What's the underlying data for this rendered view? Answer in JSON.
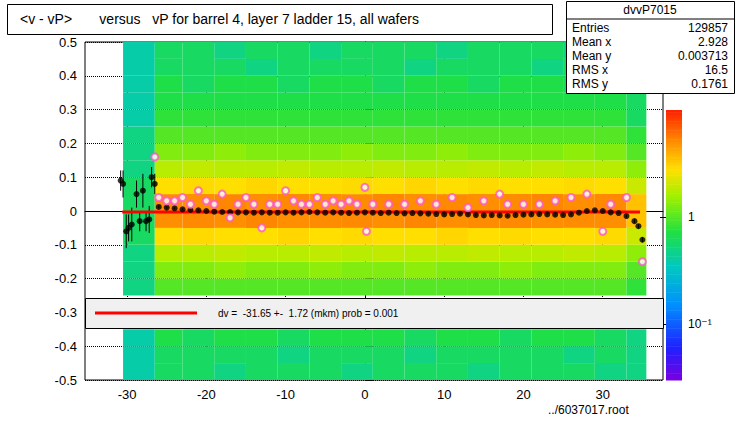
{
  "chart_data": {
    "type": "heatmap",
    "title": "<v - vP>       versus   vP for barrel 4, layer 7 ladder 15, all wafers",
    "xlim": [
      -35.3,
      37.6
    ],
    "xticks": [
      -30,
      -20,
      -10,
      0,
      10,
      20,
      30
    ],
    "ylim": [
      -0.5,
      0.5
    ],
    "yticks": [
      -0.5,
      -0.4,
      -0.3,
      -0.2,
      -0.1,
      0,
      0.1,
      0.2,
      0.3,
      0.4,
      0.5
    ],
    "grid": true,
    "heatmap": {
      "x_edges": [
        -30.5,
        -26.5,
        -23,
        -19,
        -15,
        -11,
        -7,
        -3,
        1,
        5,
        9,
        13,
        17,
        21,
        25,
        29,
        33,
        35.5
      ],
      "y_edges": [
        -0.5,
        -0.45,
        -0.4,
        -0.35,
        -0.3,
        -0.25,
        -0.2,
        -0.15,
        -0.1,
        -0.05,
        0,
        0.05,
        0.1,
        0.15,
        0.2,
        0.25,
        0.3,
        0.35,
        0.4,
        0.45,
        0.5
      ],
      "values": [
        [
          0.4,
          0.6,
          0.6,
          0.5,
          0.6,
          0.6,
          0.6,
          0.5,
          0.6,
          0.6,
          0.6,
          0.5,
          0.6,
          0.6,
          0.6,
          0.5,
          0.5
        ],
        [
          0.4,
          0.6,
          0.6,
          0.6,
          0.6,
          0.5,
          0.6,
          0.6,
          0.6,
          0.5,
          0.6,
          0.6,
          0.6,
          0.6,
          0.5,
          0.6,
          0.5
        ],
        [
          0.4,
          0.7,
          0.6,
          0.7,
          0.7,
          0.6,
          0.7,
          0.7,
          0.7,
          0.6,
          0.7,
          0.7,
          0.6,
          0.7,
          0.7,
          0.6,
          0.5
        ],
        [
          null,
          null,
          null,
          null,
          null,
          null,
          null,
          null,
          null,
          null,
          null,
          null,
          null,
          null,
          null,
          null,
          null
        ],
        [
          null,
          null,
          null,
          null,
          null,
          null,
          null,
          null,
          null,
          null,
          null,
          null,
          null,
          null,
          null,
          null,
          null
        ],
        [
          0.5,
          1,
          1,
          1,
          1,
          1,
          1,
          1,
          1,
          1,
          1,
          1,
          1,
          1,
          1,
          1,
          0.8
        ],
        [
          0.5,
          1.3,
          1.3,
          1.4,
          1.3,
          1.3,
          1.4,
          1.3,
          1.3,
          1.4,
          1.3,
          1.3,
          1.4,
          1.3,
          1.3,
          1.3,
          1
        ],
        [
          0.5,
          1.8,
          1.8,
          1.9,
          1.8,
          1.8,
          1.9,
          1.8,
          1.9,
          1.8,
          1.8,
          1.9,
          1.8,
          1.8,
          1.9,
          1.8,
          1.4
        ],
        [
          0.6,
          2.8,
          2.9,
          2.8,
          2.8,
          3,
          2.8,
          2.9,
          2.8,
          2.8,
          3,
          2.8,
          2.9,
          2.8,
          2.8,
          2.9,
          2
        ],
        [
          0.6,
          5,
          5.2,
          5,
          5.3,
          5,
          5.1,
          5.2,
          5,
          5.3,
          5,
          5.1,
          5.2,
          5,
          5.1,
          5,
          3.5
        ],
        [
          0.6,
          5.1,
          5,
          5.3,
          5,
          5.2,
          5,
          5.1,
          5.3,
          5,
          5.2,
          5,
          5.1,
          5.3,
          5,
          5.2,
          3.5
        ],
        [
          0.6,
          2.8,
          2.9,
          2.8,
          3,
          2.8,
          2.8,
          2.9,
          2.8,
          3,
          2.8,
          2.9,
          2.8,
          2.8,
          2.9,
          2.8,
          2
        ],
        [
          0.5,
          1.8,
          1.9,
          1.8,
          1.8,
          1.9,
          1.8,
          1.8,
          1.9,
          1.8,
          1.8,
          1.9,
          1.8,
          1.9,
          1.8,
          1.8,
          1.4
        ],
        [
          0.5,
          1.3,
          1.3,
          1.4,
          1.3,
          1.3,
          1.3,
          1.4,
          1.3,
          1.3,
          1.4,
          1.3,
          1.3,
          1.3,
          1.4,
          1.3,
          1
        ],
        [
          0.5,
          1,
          1,
          1,
          1,
          1,
          1,
          1,
          1,
          1,
          1,
          1,
          1,
          1,
          1,
          1,
          0.8
        ],
        [
          0.4,
          0.8,
          0.8,
          0.8,
          0.8,
          0.8,
          0.8,
          0.8,
          0.8,
          0.8,
          0.8,
          0.8,
          0.8,
          0.8,
          0.8,
          0.8,
          0.6
        ],
        [
          0.4,
          0.7,
          0.7,
          0.7,
          0.7,
          0.7,
          0.7,
          0.7,
          0.7,
          0.7,
          0.7,
          0.7,
          0.7,
          0.7,
          0.7,
          0.7,
          0.6
        ],
        [
          0.4,
          0.7,
          0.6,
          0.7,
          0.7,
          0.6,
          0.7,
          0.7,
          0.6,
          0.7,
          0.7,
          0.6,
          0.7,
          0.7,
          0.6,
          0.7,
          0.5
        ],
        [
          0.4,
          0.6,
          0.6,
          0.6,
          0.5,
          0.6,
          0.6,
          0.6,
          0.6,
          0.5,
          0.6,
          0.6,
          0.6,
          0.5,
          0.6,
          0.6,
          0.5
        ],
        [
          0.4,
          0.6,
          0.6,
          0.5,
          0.6,
          0.6,
          0.5,
          0.6,
          0.6,
          0.6,
          0.5,
          0.6,
          0.6,
          0.6,
          0.5,
          0.6,
          0.5
        ]
      ]
    },
    "colorbar": {
      "range": [
        0.03,
        10
      ],
      "log": true,
      "ticks": [
        {
          "value": 0.1,
          "label": "10⁻¹"
        },
        1
      ]
    },
    "series": [
      {
        "type": "scatter",
        "color": "#000000",
        "marker": "circle",
        "x": [
          -30.8,
          -30.5,
          -30.1,
          -29.8,
          -29.4,
          -28.8,
          -28.4,
          -28.0,
          -27.6,
          -27.2,
          -26.9,
          -26.5,
          -26,
          -25,
          -24,
          -23,
          -22,
          -21,
          -20,
          -19,
          -18,
          -17,
          -16,
          -15,
          -14,
          -13,
          -12,
          -11,
          -10,
          -9,
          -8,
          -7,
          -6,
          -5,
          -4,
          -3,
          -2,
          -1,
          0,
          1,
          2,
          3,
          4,
          5,
          6,
          7,
          8,
          9,
          10,
          11,
          12,
          13,
          14,
          15,
          16,
          17,
          18,
          19,
          20,
          21,
          22,
          23,
          24,
          25,
          26,
          27,
          28,
          29,
          30,
          31,
          32,
          33,
          34,
          34.5,
          35
        ],
        "values": [
          0.09,
          0.08,
          -0.06,
          -0.05,
          -0.04,
          0.05,
          -0.03,
          0.06,
          -0.03,
          -0.025,
          0.1,
          0.08,
          0.012,
          0.01,
          0.008,
          0.005,
          0.003,
          0.002,
          0,
          -0.002,
          -0.003,
          -0.003,
          -0.004,
          -0.004,
          -0.005,
          -0.004,
          -0.005,
          -0.005,
          -0.004,
          -0.005,
          -0.004,
          -0.003,
          -0.004,
          -0.005,
          -0.004,
          -0.005,
          -0.006,
          -0.005,
          -0.004,
          -0.005,
          -0.006,
          -0.005,
          -0.006,
          -0.007,
          -0.006,
          -0.007,
          -0.008,
          -0.009,
          -0.01,
          -0.009,
          -0.008,
          -0.01,
          -0.012,
          -0.013,
          -0.012,
          -0.013,
          -0.014,
          -0.012,
          -0.011,
          -0.01,
          -0.009,
          -0.01,
          -0.011,
          -0.012,
          -0.01,
          -0.005,
          0,
          0.002,
          0,
          -0.004,
          -0.006,
          -0.015,
          -0.03,
          -0.045,
          -0.085
        ],
        "errors": [
          0.03,
          0.04,
          0.05,
          0.04,
          0.05,
          0.04,
          0.03,
          0.05,
          0.03,
          0.04,
          0.03,
          0.03,
          0.004,
          0.003,
          0.003,
          0.003,
          0.003,
          0.003,
          0.003,
          0.003,
          0.003,
          0.003,
          0.003,
          0.003,
          0.003,
          0.003,
          0.003,
          0.003,
          0.003,
          0.003,
          0.003,
          0.003,
          0.003,
          0.003,
          0.003,
          0.003,
          0.003,
          0.003,
          0.003,
          0.003,
          0.003,
          0.003,
          0.003,
          0.003,
          0.003,
          0.003,
          0.003,
          0.003,
          0.003,
          0.003,
          0.003,
          0.003,
          0.003,
          0.003,
          0.003,
          0.003,
          0.003,
          0.003,
          0.003,
          0.003,
          0.003,
          0.003,
          0.003,
          0.003,
          0.003,
          0.003,
          0.003,
          0.003,
          0.003,
          0.003,
          0.003,
          0.004,
          0.005,
          0.006,
          0.008
        ]
      },
      {
        "type": "scatter",
        "color": "#ff55cc",
        "marker": "circle-open",
        "x": [
          -26.5,
          -26,
          -25,
          -24,
          -23,
          -22,
          -21,
          -20,
          -19,
          -18,
          -17,
          -16,
          -15,
          -14,
          -13,
          -12,
          -11,
          -10,
          -9,
          -8,
          -7,
          -6,
          -5,
          -4,
          -3,
          -2,
          -1,
          0,
          0.2,
          1,
          3,
          5,
          7,
          9,
          11,
          13,
          15,
          17,
          18,
          20,
          22,
          24,
          26,
          28,
          30,
          31,
          33,
          35
        ],
        "values": [
          0.16,
          0.04,
          0.03,
          0.03,
          0.04,
          0.02,
          0.06,
          0.03,
          0.02,
          0.05,
          -0.02,
          0.02,
          0.04,
          0.02,
          -0.05,
          0.02,
          0.02,
          0.06,
          0.03,
          0.02,
          0.02,
          0.04,
          0.02,
          0.03,
          0.02,
          0.03,
          0.02,
          0.07,
          -0.06,
          0.02,
          0.02,
          0.02,
          0.03,
          0.02,
          0.04,
          0.01,
          0.03,
          0.05,
          0.02,
          0.02,
          0.02,
          0.03,
          0.04,
          0.05,
          -0.06,
          0.02,
          0.04,
          -0.15
        ]
      },
      {
        "type": "line",
        "name": "dv =  -31.65 +-  1.72 (mkm) prob = 0.001",
        "color": "#ff0000",
        "line_style": "solid",
        "x": [
          -30.6,
          34.7
        ],
        "values": [
          -0.0032,
          -0.0032
        ]
      }
    ],
    "stats": {
      "title": "dvvP7015",
      "rows": [
        [
          "Entries",
          "129857"
        ],
        [
          "Mean x",
          "2.928"
        ],
        [
          "Mean y",
          "0.003713"
        ],
        [
          "RMS x",
          "16.5"
        ],
        [
          "RMS y",
          "0.1761"
        ]
      ]
    },
    "footer": "../6037017.root"
  }
}
